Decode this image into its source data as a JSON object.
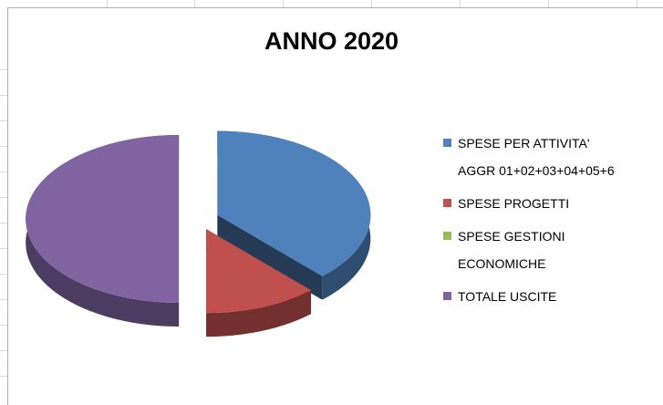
{
  "chart_data": {
    "type": "pie",
    "title": "ANNO 2020",
    "categories": [
      "SPESE PER ATTIVITA' AGGR 01+02+03+04+05+6",
      "SPESE PROGETTI",
      "SPESE GESTIONI ECONOMICHE",
      "TOTALE USCITE"
    ],
    "values": [
      38,
      12,
      0,
      50
    ],
    "colors": [
      "#4f81bd",
      "#c0504d",
      "#9bbb59",
      "#8064a2"
    ],
    "legend": "right"
  }
}
